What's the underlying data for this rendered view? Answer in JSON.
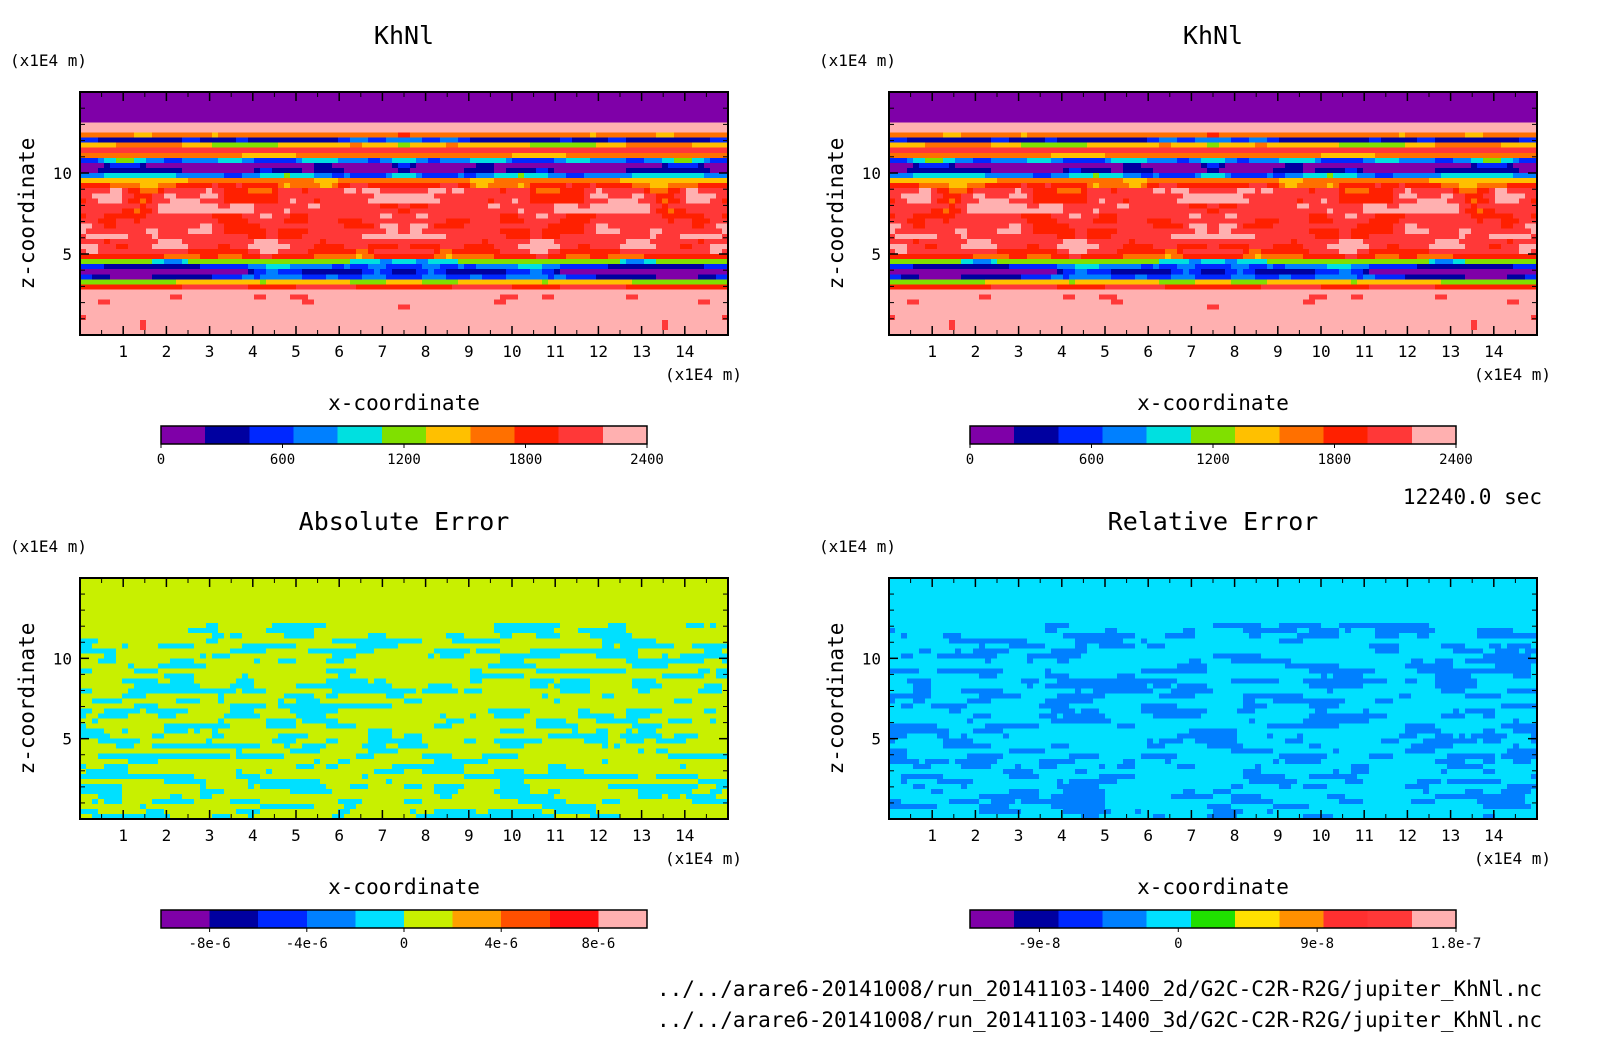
{
  "time_label": "12240.0 sec",
  "files": [
    "../../arare6-20141008/run_20141103-1400_2d/G2C-C2R-R2G/jupiter_KhNl.nc",
    "../../arare6-20141008/run_20141103-1400_3d/G2C-C2R-R2G/jupiter_KhNl.nc"
  ],
  "palettes": {
    "khnl": [
      "#7f00a8",
      "#0000a0",
      "#0028ff",
      "#0080ff",
      "#00e0e0",
      "#80e000",
      "#ffc000",
      "#ff7000",
      "#ff2000",
      "#ff3838",
      "#ffb0b0"
    ],
    "abs_err": [
      "#7f00a8",
      "#0000a0",
      "#0028ff",
      "#0080ff",
      "#00e0ff",
      "#c8f000",
      "#ffa000",
      "#ff5000",
      "#ff1010",
      "#ffb0b0"
    ],
    "rel_err": [
      "#7f00a8",
      "#0000a0",
      "#0028ff",
      "#0080ff",
      "#00e0ff",
      "#20e000",
      "#ffe000",
      "#ff9000",
      "#ff3030",
      "#ff3838",
      "#ffb0b0"
    ]
  },
  "chart_data": [
    {
      "type": "heatmap",
      "title": "KhNl",
      "xlabel": "x-coordinate",
      "ylabel": "z-coordinate",
      "x_unit": "(x1E4 m)",
      "y_unit": "(x1E4 m)",
      "xlim": [
        0,
        15
      ],
      "ylim": [
        0,
        15
      ],
      "x_ticks": [
        1,
        2,
        3,
        4,
        5,
        6,
        7,
        8,
        9,
        10,
        11,
        12,
        13,
        14
      ],
      "y_ticks": [
        5,
        10
      ],
      "colorbar": {
        "ticks": [
          "0",
          "600",
          "1200",
          "1800",
          "2400"
        ],
        "tick_values": [
          0,
          600,
          1200,
          1800,
          2400
        ],
        "range": [
          0,
          2400
        ],
        "levels": 11
      },
      "palette": "khnl",
      "field": "khnl"
    },
    {
      "type": "heatmap",
      "title": "KhNl",
      "xlabel": "x-coordinate",
      "ylabel": "z-coordinate",
      "x_unit": "(x1E4 m)",
      "y_unit": "(x1E4 m)",
      "xlim": [
        0,
        15
      ],
      "ylim": [
        0,
        15
      ],
      "x_ticks": [
        1,
        2,
        3,
        4,
        5,
        6,
        7,
        8,
        9,
        10,
        11,
        12,
        13,
        14
      ],
      "y_ticks": [
        5,
        10
      ],
      "colorbar": {
        "ticks": [
          "0",
          "600",
          "1200",
          "1800",
          "2400"
        ],
        "tick_values": [
          0,
          600,
          1200,
          1800,
          2400
        ],
        "range": [
          0,
          2400
        ],
        "levels": 11
      },
      "palette": "khnl",
      "field": "khnl"
    },
    {
      "type": "heatmap",
      "title": "Absolute Error",
      "xlabel": "x-coordinate",
      "ylabel": "z-coordinate",
      "x_unit": "(x1E4 m)",
      "y_unit": "(x1E4 m)",
      "xlim": [
        0,
        15
      ],
      "ylim": [
        0,
        15
      ],
      "x_ticks": [
        1,
        2,
        3,
        4,
        5,
        6,
        7,
        8,
        9,
        10,
        11,
        12,
        13,
        14
      ],
      "y_ticks": [
        5,
        10
      ],
      "colorbar": {
        "ticks": [
          "-8e-6",
          "-4e-6",
          "0",
          "4e-6",
          "8e-6"
        ],
        "tick_values": [
          -8e-06,
          -4e-06,
          0,
          4e-06,
          8e-06
        ],
        "range": [
          -1e-05,
          1e-05
        ],
        "levels": 10
      },
      "palette": "abs_err",
      "field": "abs"
    },
    {
      "type": "heatmap",
      "title": "Relative Error",
      "xlabel": "x-coordinate",
      "ylabel": "z-coordinate",
      "x_unit": "(x1E4 m)",
      "y_unit": "(x1E4 m)",
      "xlim": [
        0,
        15
      ],
      "ylim": [
        0,
        15
      ],
      "x_ticks": [
        1,
        2,
        3,
        4,
        5,
        6,
        7,
        8,
        9,
        10,
        11,
        12,
        13,
        14
      ],
      "y_ticks": [
        5,
        10
      ],
      "colorbar": {
        "ticks": [
          "-9e-8",
          "0",
          "9e-8",
          "1.8e-7"
        ],
        "tick_values": [
          -9e-08,
          0,
          9e-08,
          1.8e-07
        ],
        "range": [
          -1.35e-07,
          1.8e-07
        ],
        "levels": 11
      },
      "palette": "rel_err",
      "field": "rel"
    }
  ]
}
